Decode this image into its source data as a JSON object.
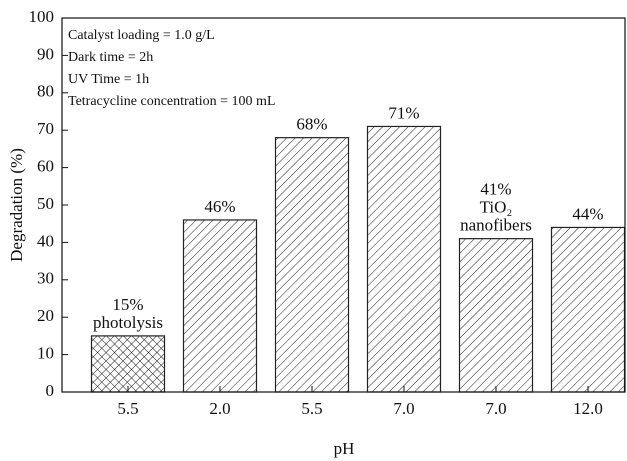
{
  "chart_data": {
    "type": "bar",
    "x_label": "pH",
    "y_label": "Degradation (%)",
    "categories": [
      "5.5",
      "2.0",
      "5.5",
      "7.0",
      "7.0",
      "12.0"
    ],
    "values": [
      15,
      46,
      68,
      71,
      41,
      44
    ],
    "value_labels": [
      "15%",
      "46%",
      "68%",
      "71%",
      "41%",
      "44%"
    ],
    "bar_notes": [
      [
        "photolysis"
      ],
      null,
      null,
      null,
      [
        "TiO₂",
        "nanofibers"
      ],
      null
    ],
    "patterns": [
      "crosshatch",
      "diagonal",
      "diagonal",
      "diagonal",
      "diagonal",
      "diagonal"
    ],
    "color": "#222222",
    "conditions": [
      "Catalyst loading = 1.0 g/L",
      "Dark time = 2h",
      "UV Time = 1h",
      "Tetracycline concentration = 100 mL"
    ],
    "ylim": [
      0,
      100
    ],
    "yticks": [
      0,
      10,
      20,
      30,
      40,
      50,
      60,
      70,
      80,
      90,
      100
    ]
  }
}
